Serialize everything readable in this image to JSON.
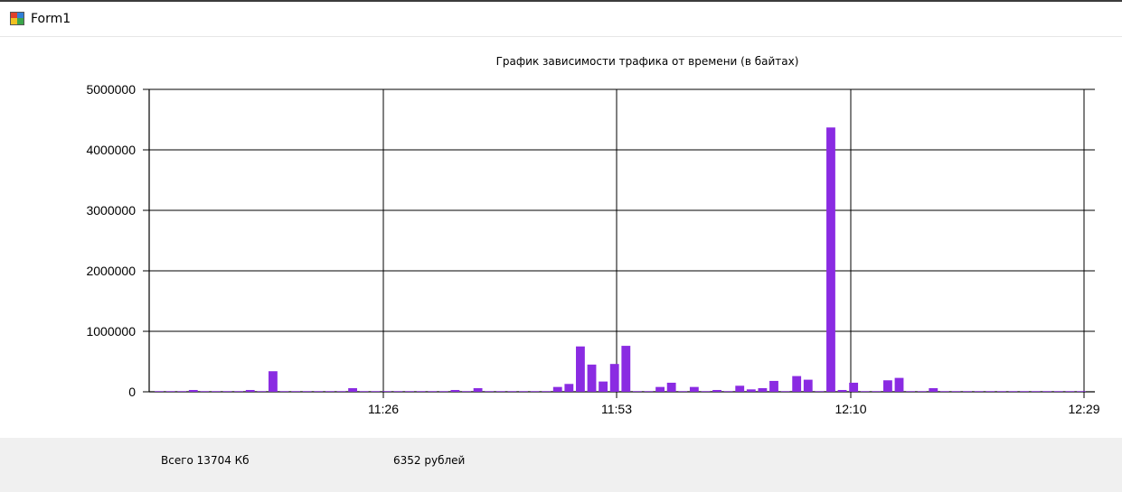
{
  "window": {
    "title": "Form1",
    "icon": "winforms-app-icon"
  },
  "colors": {
    "bar": "#8a2be2",
    "grid": "#000000"
  },
  "chart_data": {
    "type": "bar",
    "title": "График зависимости трафика от времени (в байтах)",
    "xlabel": "",
    "ylabel": "",
    "ylim": [
      0,
      5000000
    ],
    "yticks": [
      0,
      1000000,
      2000000,
      3000000,
      4000000,
      5000000
    ],
    "ytick_labels": [
      "0",
      "1000000",
      "2000000",
      "3000000",
      "4000000",
      "5000000"
    ],
    "xticks": [
      "11:26",
      "11:53",
      "12:10",
      "12:29"
    ],
    "grid": true,
    "legend": "none",
    "values": [
      10000,
      10000,
      10000,
      30000,
      10000,
      10000,
      10000,
      10000,
      30000,
      10000,
      340000,
      10000,
      10000,
      10000,
      10000,
      10000,
      10000,
      60000,
      10000,
      10000,
      10000,
      10000,
      10000,
      10000,
      10000,
      10000,
      30000,
      10000,
      60000,
      10000,
      10000,
      10000,
      10000,
      10000,
      10000,
      80000,
      130000,
      750000,
      450000,
      170000,
      460000,
      760000,
      10000,
      10000,
      80000,
      150000,
      10000,
      80000,
      10000,
      30000,
      10000,
      100000,
      40000,
      60000,
      180000,
      10000,
      260000,
      200000,
      10000,
      4370000,
      30000,
      150000,
      10000,
      10000,
      190000,
      230000,
      10000,
      10000,
      60000,
      10000,
      10000,
      10000,
      10000,
      10000,
      10000,
      10000,
      10000,
      10000,
      10000,
      10000,
      10000,
      10000
    ]
  },
  "status": {
    "total": "Всего 13704 Кб",
    "cost": "6352 рублей"
  }
}
